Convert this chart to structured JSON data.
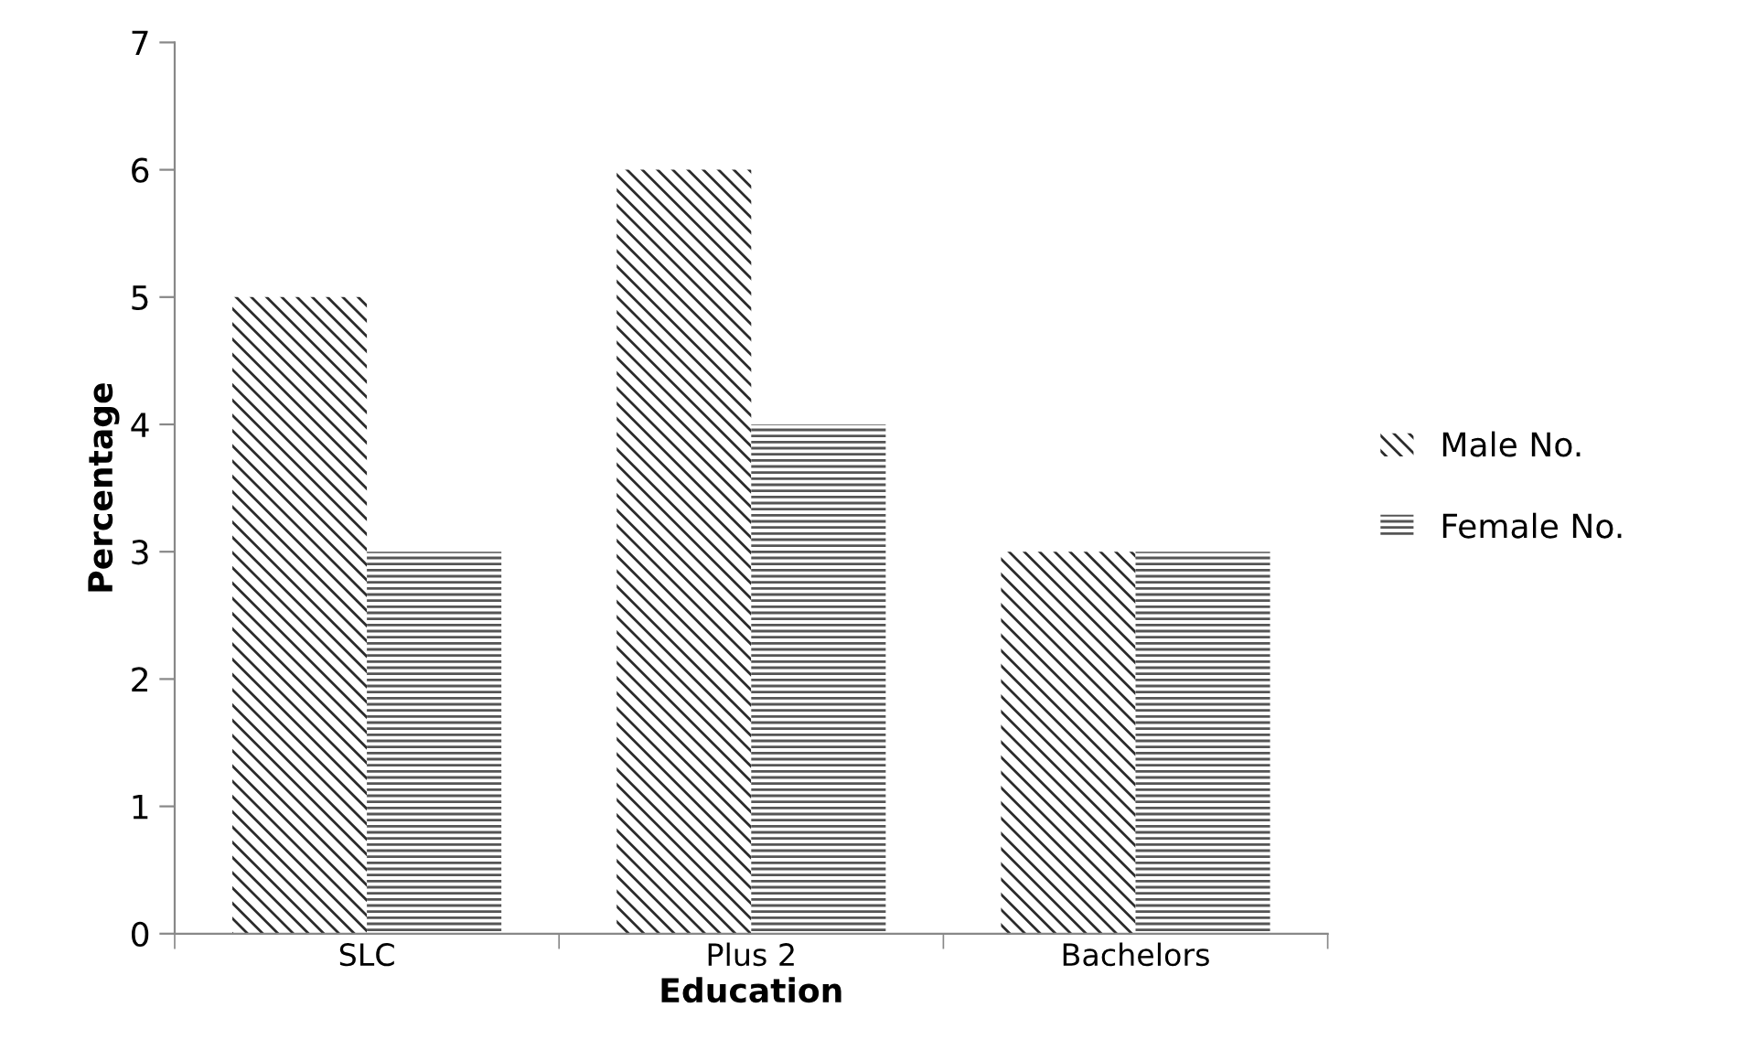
{
  "chart_data": {
    "type": "bar",
    "xlabel": "Education",
    "ylabel": "Percentage",
    "categories": [
      "SLC",
      "Plus 2",
      "Bachelors"
    ],
    "series": [
      {
        "name": "Male No.",
        "color": "#2b2b2b",
        "values": [
          5,
          6,
          3
        ]
      },
      {
        "name": "Female No.",
        "color": "#555555",
        "values": [
          3,
          4,
          3
        ]
      }
    ],
    "ylim": [
      0,
      7
    ],
    "yticks": [
      0,
      1,
      2,
      3,
      4,
      5,
      6,
      7
    ],
    "grid": false,
    "legend": "right"
  }
}
